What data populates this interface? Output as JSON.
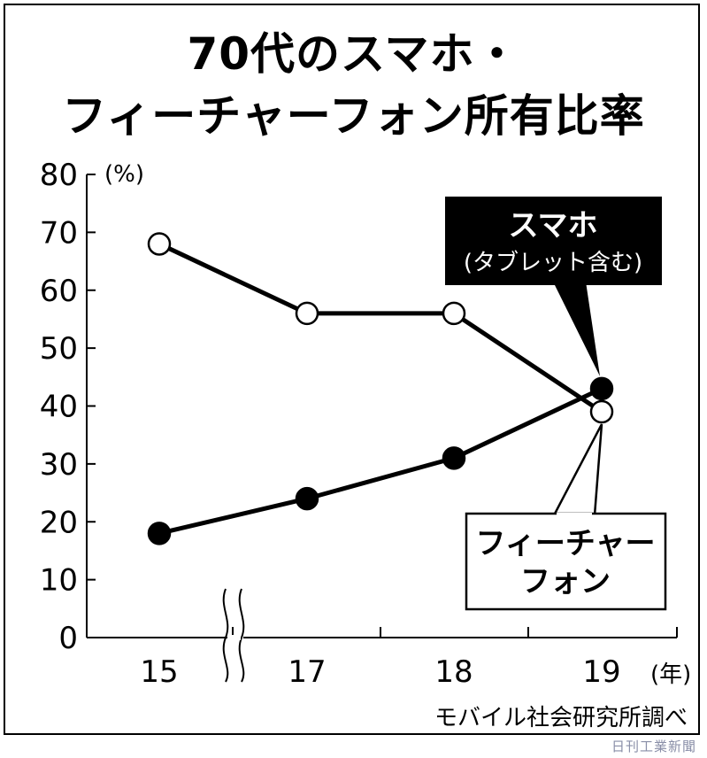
{
  "chart_data": {
    "type": "line",
    "title_line1": "70代のスマホ・",
    "title_line2": "フィーチャーフォン所有比率",
    "y_unit": "(%)",
    "x_unit": "(年)",
    "categories": [
      "15",
      "17",
      "18",
      "19"
    ],
    "y_ticks": [
      "0",
      "10",
      "20",
      "30",
      "40",
      "50",
      "60",
      "70",
      "80"
    ],
    "ylim": [
      0,
      80
    ],
    "axis_break_between": [
      "15",
      "17"
    ],
    "grid": false,
    "series": [
      {
        "name": "スマホ",
        "name_note": "(タブレット含む)",
        "marker": "filled-circle",
        "values": [
          18,
          24,
          31,
          43
        ]
      },
      {
        "name": "フィーチャーフォン",
        "name_line1": "フィーチャー",
        "name_line2": "フォン",
        "marker": "open-circle",
        "values": [
          68,
          56,
          56,
          39
        ]
      }
    ],
    "source": "モバイル社会研究所調べ"
  },
  "watermark": "日刊工業新聞",
  "colors": {
    "line": "#000000",
    "label_box_dark": "#000000",
    "label_text_dark": "#ffffff",
    "watermark": "#8a8fa8"
  }
}
